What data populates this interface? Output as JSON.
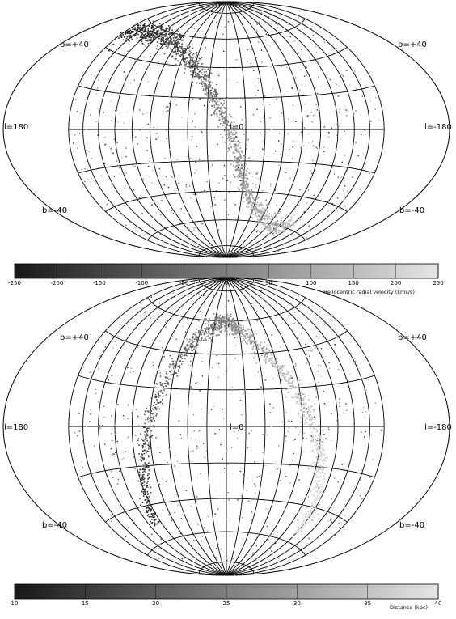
{
  "chart_data": [
    {
      "type": "scatter",
      "projection": "hammer-aitoff",
      "grid_labels": {
        "b_top_left": "b=+40",
        "b_top_right": "b=+40",
        "l_left": "l=180",
        "l_center": "l=0",
        "l_right": "l=-180",
        "b_bottom_left": "b=-40",
        "b_bottom_right": "b=-40"
      },
      "colorbar": {
        "label": "Heliocentric radial velocity (kms/s)",
        "range": [
          -250,
          250
        ],
        "ticks": [
          "-250",
          "-200",
          "-150",
          "-100",
          "-50",
          "0",
          "50",
          "100",
          "150",
          "200",
          "250"
        ]
      },
      "stream": {
        "description_points_lon_lat": [
          [
            180,
            50
          ],
          [
            150,
            55
          ],
          [
            120,
            57
          ],
          [
            90,
            55
          ],
          [
            60,
            48
          ],
          [
            35,
            38
          ],
          [
            15,
            22
          ],
          [
            0,
            5
          ],
          [
            -10,
            -15
          ],
          [
            -20,
            -35
          ],
          [
            -40,
            -50
          ],
          [
            -80,
            -60
          ],
          [
            -120,
            -60
          ]
        ],
        "value_range_along_stream": [
          -250,
          150
        ]
      },
      "grid": true
    },
    {
      "type": "scatter",
      "projection": "hammer-aitoff",
      "grid_labels": {
        "b_top_left": "b=+40",
        "b_top_right": "b=+40",
        "l_left": "l=180",
        "l_center": "l=0",
        "l_right": "l=-180",
        "b_bottom_left": "b=-40",
        "b_bottom_right": "b=-40"
      },
      "colorbar": {
        "label": "Distance (kpc)",
        "range": [
          10,
          40
        ],
        "ticks": [
          "10",
          "15",
          "20",
          "25",
          "30",
          "35",
          "40"
        ]
      },
      "stream": {
        "description_points_lon_lat": [
          [
            -120,
            -55
          ],
          [
            -110,
            -30
          ],
          [
            -95,
            -5
          ],
          [
            -75,
            20
          ],
          [
            -50,
            40
          ],
          [
            -20,
            55
          ],
          [
            0,
            60
          ],
          [
            20,
            58
          ],
          [
            45,
            48
          ],
          [
            65,
            30
          ],
          [
            80,
            5
          ],
          [
            95,
            -25
          ],
          [
            110,
            -50
          ]
        ],
        "value_range_along_stream": [
          40,
          12
        ]
      },
      "grid": true
    }
  ]
}
